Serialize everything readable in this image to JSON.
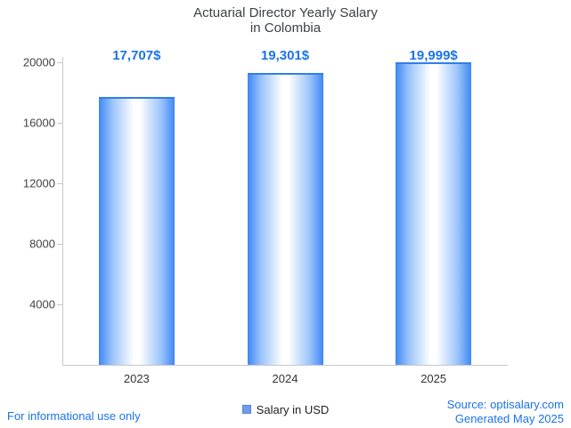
{
  "title": {
    "line1": "Actuarial Director Yearly Salary",
    "line2": "in Colombia"
  },
  "chart_data": {
    "type": "bar",
    "title": "Actuarial Director Yearly Salary in Colombia",
    "categories": [
      "2023",
      "2024",
      "2025"
    ],
    "values": [
      17707,
      19301,
      19999
    ],
    "value_labels": [
      "17,707$",
      "19,301$",
      "19,999$"
    ],
    "series_name": "Salary in USD",
    "xlabel": "",
    "ylabel": "",
    "ylim": [
      0,
      20000
    ],
    "yticks": [
      4000,
      8000,
      12000,
      16000,
      20000
    ],
    "grid": false,
    "legend_position": "bottom",
    "colors": {
      "bar_edge": "#3f87f5",
      "bar_center": "#ffffff",
      "value_label": "#1a73e8",
      "axis": "#c8c8c8",
      "tick_text": "#444444"
    }
  },
  "legend": {
    "label": "Salary in USD",
    "swatch_color": "#6d9eeb"
  },
  "footer": {
    "disclaimer": "For informational use only",
    "source": "Source: optisalary.com",
    "generated": "Generated May 2025"
  }
}
